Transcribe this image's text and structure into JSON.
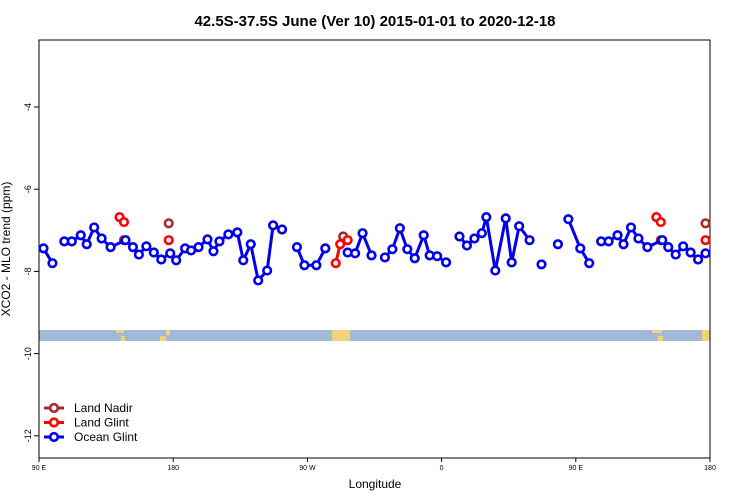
{
  "chart_data": {
    "type": "line",
    "title": "42.5S-37.5S June (Ver 10)   2015-01-01 to 2020-12-18",
    "x_label": "Longitude",
    "y_label": "XCO2 - MLO trend (ppm)",
    "xlim": [
      90,
      540
    ],
    "ylim": [
      -12.54,
      -2.37
    ],
    "xticks": [
      {
        "value": 90,
        "label": "90 E"
      },
      180,
      {
        "value": 270,
        "label": "90 W"
      },
      {
        "value": 360,
        "label": "0"
      },
      {
        "value": 450,
        "label": "90 E"
      },
      {
        "value": 540,
        "label": "180"
      }
    ],
    "yticks": [
      -4,
      -6,
      -8,
      -10,
      -12
    ],
    "legend": "bottom-left",
    "series": [
      {
        "name": "Land Nadir",
        "color": "#a52a2a",
        "x": [
          147,
          null,
          177,
          null,
          294,
          null,
          507,
          null,
          537
        ],
        "values": [
          -7.24,
          null,
          -6.83,
          null,
          -7.15,
          null,
          -7.24,
          null,
          -6.83
        ]
      },
      {
        "name": "Land Glint",
        "color": "#ff0000",
        "x": [
          144,
          147,
          null,
          177,
          null,
          289,
          292,
          297,
          null,
          504,
          507,
          null,
          537
        ],
        "values": [
          -6.68,
          -6.8,
          null,
          -7.24,
          null,
          -7.8,
          -7.34,
          -7.24,
          null,
          -6.68,
          -6.8,
          null,
          -7.24
        ]
      },
      {
        "name": "Ocean Glint",
        "color": "#0000ee",
        "x": [
          93,
          99,
          null,
          107,
          112,
          118,
          122,
          127,
          132,
          138,
          148,
          153,
          157,
          162,
          167,
          172,
          178,
          182,
          188,
          192,
          197,
          203,
          207,
          211,
          217,
          223,
          227,
          232,
          237,
          243,
          247,
          253,
          null,
          263,
          268,
          276,
          282,
          null,
          297,
          302,
          307,
          313,
          null,
          322,
          327,
          332,
          337,
          342,
          348,
          352,
          357,
          363,
          null,
          372,
          377,
          382,
          387,
          390,
          396,
          403,
          407,
          412,
          419,
          null,
          427,
          null,
          438,
          null,
          445,
          453,
          459,
          null,
          467,
          472,
          478,
          482,
          487,
          492,
          498,
          508,
          512,
          517,
          522,
          527,
          532,
          537
        ],
        "values": [
          -7.44,
          -7.8,
          null,
          -7.27,
          -7.27,
          -7.12,
          -7.34,
          -6.93,
          -7.2,
          -7.41,
          -7.24,
          -7.41,
          -7.59,
          -7.39,
          -7.54,
          -7.71,
          -7.56,
          -7.73,
          -7.44,
          -7.49,
          -7.41,
          -7.22,
          -7.51,
          -7.27,
          -7.1,
          -7.05,
          -7.73,
          -7.34,
          -8.22,
          -7.98,
          -6.88,
          -6.98,
          null,
          -7.41,
          -7.85,
          -7.85,
          -7.44,
          null,
          -7.54,
          -7.56,
          -7.07,
          -7.61,
          null,
          -7.66,
          -7.46,
          -6.95,
          -7.46,
          -7.68,
          -7.12,
          -7.61,
          -7.63,
          -7.78,
          null,
          -7.15,
          -7.37,
          -7.2,
          -7.07,
          -6.68,
          -7.98,
          -6.71,
          -7.78,
          -6.9,
          -7.24,
          null,
          -7.83,
          null,
          -7.34,
          null,
          -6.73,
          -7.44,
          -7.8,
          null,
          -7.27,
          -7.27,
          -7.12,
          -7.34,
          -6.93,
          -7.2,
          -7.41,
          -7.24,
          -7.41,
          -7.59,
          -7.39,
          -7.54,
          -7.71,
          -7.56
        ]
      }
    ]
  }
}
